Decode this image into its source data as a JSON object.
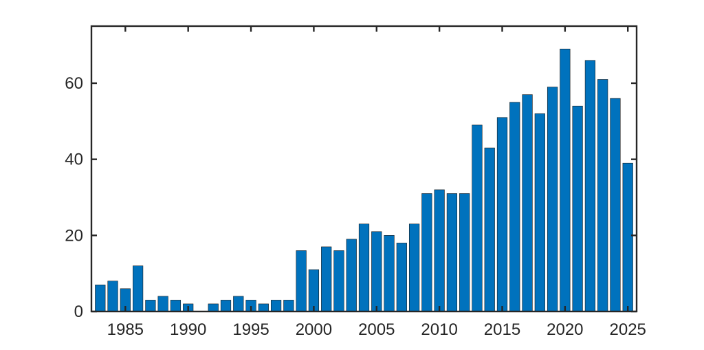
{
  "chart_data": {
    "type": "bar",
    "title": "",
    "xlabel": "",
    "ylabel": "",
    "x": [
      1983,
      1984,
      1985,
      1986,
      1987,
      1988,
      1989,
      1990,
      1991,
      1992,
      1993,
      1994,
      1995,
      1996,
      1997,
      1998,
      1999,
      2000,
      2001,
      2002,
      2003,
      2004,
      2005,
      2006,
      2007,
      2008,
      2009,
      2010,
      2011,
      2012,
      2013,
      2014,
      2015,
      2016,
      2017,
      2018,
      2019,
      2020,
      2021,
      2022,
      2023,
      2024,
      2025
    ],
    "values": [
      7,
      8,
      6,
      12,
      3,
      4,
      3,
      2,
      0,
      2,
      3,
      4,
      3,
      2,
      3,
      3,
      16,
      11,
      17,
      16,
      19,
      23,
      21,
      20,
      18,
      23,
      31,
      32,
      31,
      31,
      49,
      43,
      51,
      55,
      57,
      52,
      59,
      69,
      54,
      66,
      61,
      56,
      39
    ],
    "xlim": [
      1982.3,
      2025.7
    ],
    "ylim": [
      0,
      75
    ],
    "xticks": [
      1985,
      1990,
      1995,
      2000,
      2005,
      2010,
      2015,
      2020,
      2025
    ],
    "xtick_labels": [
      "1985",
      "1990",
      "1995",
      "2000",
      "2005",
      "2010",
      "2015",
      "2020",
      "2025"
    ],
    "yticks": [
      0,
      20,
      40,
      60
    ],
    "ytick_labels": [
      "0",
      "20",
      "40",
      "60"
    ],
    "bar_color": "#0072BD",
    "bar_edge_color": "#1a1a1a",
    "axis_color": "#262626",
    "grid": false,
    "box": true
  }
}
